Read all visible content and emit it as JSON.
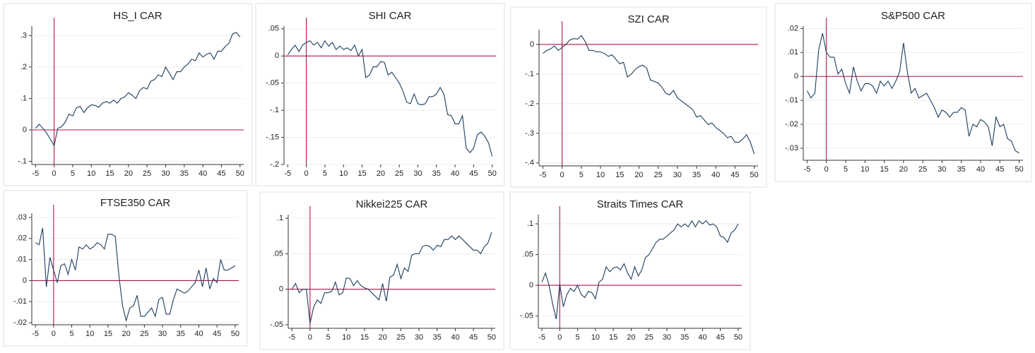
{
  "chart_data": [
    {
      "type": "line",
      "title": "HS_I CAR",
      "color": "#1c3d5e",
      "ref_color": "#b3164b",
      "vline": 0,
      "hline": 0,
      "grid": true,
      "x": [
        -5,
        -4,
        -3,
        -2,
        -1,
        0,
        1,
        2,
        3,
        4,
        5,
        6,
        7,
        8,
        9,
        10,
        11,
        12,
        13,
        14,
        15,
        16,
        17,
        18,
        19,
        20,
        21,
        22,
        23,
        24,
        25,
        26,
        27,
        28,
        29,
        30,
        31,
        32,
        33,
        34,
        35,
        36,
        37,
        38,
        39,
        40,
        41,
        42,
        43,
        44,
        45,
        46,
        47,
        48,
        49,
        50
      ],
      "values": [
        0.005,
        0.018,
        0.005,
        -0.01,
        -0.03,
        -0.05,
        0.005,
        0.01,
        0.025,
        0.05,
        0.045,
        0.07,
        0.075,
        0.055,
        0.07,
        0.08,
        0.078,
        0.072,
        0.085,
        0.09,
        0.085,
        0.095,
        0.085,
        0.1,
        0.105,
        0.118,
        0.11,
        0.1,
        0.125,
        0.135,
        0.13,
        0.155,
        0.16,
        0.175,
        0.17,
        0.2,
        0.18,
        0.16,
        0.185,
        0.185,
        0.2,
        0.21,
        0.225,
        0.22,
        0.245,
        0.232,
        0.24,
        0.245,
        0.225,
        0.25,
        0.25,
        0.265,
        0.275,
        0.305,
        0.31,
        0.295
      ],
      "xlim": [
        -6,
        51
      ],
      "ylim": [
        -0.11,
        0.33
      ],
      "xticks": [
        -5,
        0,
        5,
        10,
        15,
        20,
        25,
        30,
        35,
        40,
        45,
        50
      ],
      "yticks": [
        {
          "value": -0.1,
          "label": "-.1"
        },
        0,
        {
          "value": 0.1,
          "label": ".1"
        },
        {
          "value": 0.2,
          "label": ".2"
        },
        {
          "value": 0.3,
          "label": ".3"
        }
      ]
    },
    {
      "type": "line",
      "title": "SHI CAR",
      "color": "#1c3d5e",
      "ref_color": "#b3164b",
      "vline": 0,
      "hline": 0,
      "grid": true,
      "x": [
        -5,
        -4,
        -3,
        -2,
        -1,
        0,
        1,
        2,
        3,
        4,
        5,
        6,
        7,
        8,
        9,
        10,
        11,
        12,
        13,
        14,
        15,
        16,
        17,
        18,
        19,
        20,
        21,
        22,
        23,
        24,
        25,
        26,
        27,
        28,
        29,
        30,
        31,
        32,
        33,
        34,
        35,
        36,
        37,
        38,
        39,
        40,
        41,
        42,
        43,
        44,
        45,
        46,
        47,
        48,
        49,
        50
      ],
      "values": [
        0.002,
        0.012,
        0.02,
        0.008,
        0.02,
        0.025,
        0.028,
        0.02,
        0.025,
        0.015,
        0.028,
        0.018,
        0.025,
        0.012,
        0.018,
        0.012,
        0.015,
        0.01,
        0.02,
        0.0,
        0.012,
        -0.04,
        -0.035,
        -0.02,
        -0.02,
        -0.01,
        -0.012,
        -0.035,
        -0.03,
        -0.04,
        -0.05,
        -0.065,
        -0.085,
        -0.088,
        -0.07,
        -0.088,
        -0.09,
        -0.088,
        -0.075,
        -0.075,
        -0.07,
        -0.058,
        -0.07,
        -0.108,
        -0.11,
        -0.125,
        -0.125,
        -0.11,
        -0.17,
        -0.178,
        -0.17,
        -0.145,
        -0.14,
        -0.148,
        -0.16,
        -0.185
      ],
      "xlim": [
        -6,
        51
      ],
      "ylim": [
        -0.2,
        0.055
      ],
      "xticks": [
        -5,
        0,
        5,
        10,
        15,
        20,
        25,
        30,
        35,
        40,
        45,
        50
      ],
      "yticks": [
        {
          "value": -0.2,
          "label": "-.2"
        },
        {
          "value": -0.15,
          "label": "-.15"
        },
        {
          "value": -0.1,
          "label": "-.1"
        },
        {
          "value": -0.05,
          "label": "-.05"
        },
        0,
        {
          "value": 0.05,
          "label": ".05"
        }
      ]
    },
    {
      "type": "line",
      "title": "SZI CAR",
      "color": "#1c3d5e",
      "ref_color": "#b3164b",
      "vline": 0,
      "hline": 0,
      "grid": true,
      "x": [
        -5,
        -4,
        -3,
        -2,
        -1,
        0,
        1,
        2,
        3,
        4,
        5,
        6,
        7,
        8,
        9,
        10,
        11,
        12,
        13,
        14,
        15,
        16,
        17,
        18,
        19,
        20,
        21,
        22,
        23,
        24,
        25,
        26,
        27,
        28,
        29,
        30,
        31,
        32,
        33,
        34,
        35,
        36,
        37,
        38,
        39,
        40,
        41,
        42,
        43,
        44,
        45,
        46,
        47,
        48,
        49,
        50
      ],
      "values": [
        -0.03,
        -0.02,
        -0.015,
        -0.005,
        -0.02,
        -0.01,
        0.0,
        0.015,
        0.02,
        0.018,
        0.03,
        0.01,
        -0.02,
        -0.02,
        -0.025,
        -0.025,
        -0.03,
        -0.04,
        -0.035,
        -0.05,
        -0.065,
        -0.06,
        -0.11,
        -0.1,
        -0.085,
        -0.075,
        -0.07,
        -0.08,
        -0.12,
        -0.125,
        -0.13,
        -0.145,
        -0.165,
        -0.17,
        -0.155,
        -0.18,
        -0.19,
        -0.2,
        -0.21,
        -0.22,
        -0.245,
        -0.24,
        -0.255,
        -0.27,
        -0.265,
        -0.28,
        -0.29,
        -0.3,
        -0.315,
        -0.31,
        -0.33,
        -0.33,
        -0.32,
        -0.305,
        -0.33,
        -0.37
      ],
      "xlim": [
        -6,
        51
      ],
      "ylim": [
        -0.41,
        0.05
      ],
      "xticks": [
        -5,
        0,
        5,
        10,
        15,
        20,
        25,
        30,
        35,
        40,
        45,
        50
      ],
      "yticks": [
        {
          "value": -0.4,
          "label": "-.4"
        },
        {
          "value": -0.3,
          "label": "-.3"
        },
        {
          "value": -0.2,
          "label": "-.2"
        },
        {
          "value": -0.1,
          "label": "-.1"
        },
        0
      ]
    },
    {
      "type": "line",
      "title": "S&P500 CAR",
      "color": "#1c3d5e",
      "ref_color": "#b3164b",
      "vline": 0,
      "hline": 0,
      "grid": true,
      "x": [
        -5,
        -4,
        -3,
        -2,
        -1,
        0,
        1,
        2,
        3,
        4,
        5,
        6,
        7,
        8,
        9,
        10,
        11,
        12,
        13,
        14,
        15,
        16,
        17,
        18,
        19,
        20,
        21,
        22,
        23,
        24,
        25,
        26,
        27,
        28,
        29,
        30,
        31,
        32,
        33,
        34,
        35,
        36,
        37,
        38,
        39,
        40,
        41,
        42,
        43,
        44,
        45,
        46,
        47,
        48,
        49,
        50
      ],
      "values": [
        -0.006,
        -0.009,
        -0.007,
        0.011,
        0.018,
        0.01,
        0.008,
        0.008,
        0.001,
        0.003,
        -0.003,
        -0.007,
        0.004,
        -0.002,
        -0.006,
        -0.003,
        -0.003,
        -0.004,
        -0.007,
        -0.002,
        -0.004,
        -0.002,
        -0.005,
        -0.002,
        0.002,
        0.014,
        0.002,
        -0.007,
        -0.005,
        -0.009,
        -0.008,
        -0.007,
        -0.01,
        -0.013,
        -0.017,
        -0.014,
        -0.015,
        -0.017,
        -0.015,
        -0.015,
        -0.013,
        -0.014,
        -0.025,
        -0.02,
        -0.021,
        -0.018,
        -0.019,
        -0.021,
        -0.029,
        -0.017,
        -0.021,
        -0.02,
        -0.026,
        -0.027,
        -0.031,
        -0.032
      ],
      "xlim": [
        -6,
        51
      ],
      "ylim": [
        -0.035,
        0.021
      ],
      "xticks": [
        -5,
        0,
        5,
        10,
        15,
        20,
        25,
        30,
        35,
        40,
        45,
        50
      ],
      "yticks": [
        {
          "value": -0.03,
          "label": "-.03"
        },
        {
          "value": -0.02,
          "label": "-.02"
        },
        {
          "value": -0.01,
          "label": "-.01"
        },
        0,
        {
          "value": 0.01,
          "label": ".01"
        },
        {
          "value": 0.02,
          "label": ".02"
        }
      ]
    },
    {
      "type": "line",
      "title": "FTSE350 CAR",
      "color": "#1c3d5e",
      "ref_color": "#b3164b",
      "vline": 0,
      "hline": 0,
      "grid": true,
      "x": [
        -5,
        -4,
        -3,
        -2,
        -1,
        0,
        1,
        2,
        3,
        4,
        5,
        6,
        7,
        8,
        9,
        10,
        11,
        12,
        13,
        14,
        15,
        16,
        17,
        18,
        19,
        20,
        21,
        22,
        23,
        24,
        25,
        26,
        27,
        28,
        29,
        30,
        31,
        32,
        33,
        34,
        35,
        36,
        37,
        38,
        39,
        40,
        41,
        42,
        43,
        44,
        45,
        46,
        47,
        48,
        49,
        50
      ],
      "values": [
        0.018,
        0.017,
        0.025,
        -0.003,
        0.011,
        0.005,
        -0.001,
        0.007,
        0.008,
        0.003,
        0.01,
        0.005,
        0.016,
        0.015,
        0.017,
        0.015,
        0.016,
        0.018,
        0.017,
        0.015,
        0.022,
        0.022,
        0.021,
        0.002,
        -0.012,
        -0.019,
        -0.013,
        -0.012,
        -0.007,
        -0.017,
        -0.017,
        -0.015,
        -0.013,
        -0.017,
        -0.009,
        -0.008,
        -0.016,
        -0.016,
        -0.009,
        -0.004,
        -0.005,
        -0.006,
        -0.005,
        -0.003,
        -0.001,
        0.005,
        -0.003,
        0.006,
        -0.004,
        0.001,
        -0.001,
        0.01,
        0.005,
        0.005,
        0.006,
        0.007
      ],
      "xlim": [
        -6,
        51
      ],
      "ylim": [
        -0.021,
        0.032
      ],
      "xticks": [
        -5,
        0,
        5,
        10,
        15,
        20,
        25,
        30,
        35,
        40,
        45,
        50
      ],
      "yticks": [
        {
          "value": -0.02,
          "label": "-.02"
        },
        {
          "value": -0.01,
          "label": "-.01"
        },
        0,
        {
          "value": 0.01,
          "label": ".01"
        },
        {
          "value": 0.02,
          "label": ".02"
        },
        {
          "value": 0.03,
          "label": ".03"
        }
      ]
    },
    {
      "type": "line",
      "title": "Nikkei225 CAR",
      "color": "#1c3d5e",
      "ref_color": "#b3164b",
      "vline": 0,
      "hline": 0,
      "grid": true,
      "x": [
        -5,
        -4,
        -3,
        -2,
        -1,
        0,
        1,
        2,
        3,
        4,
        5,
        6,
        7,
        8,
        9,
        10,
        11,
        12,
        13,
        14,
        15,
        16,
        17,
        18,
        19,
        20,
        21,
        22,
        23,
        24,
        25,
        26,
        27,
        28,
        29,
        30,
        31,
        32,
        33,
        34,
        35,
        36,
        37,
        38,
        39,
        40,
        41,
        42,
        43,
        44,
        45,
        46,
        47,
        48,
        49,
        50
      ],
      "values": [
        0.0,
        0.008,
        -0.005,
        0.0,
        0.0,
        -0.048,
        -0.025,
        -0.015,
        -0.02,
        -0.005,
        -0.005,
        -0.003,
        0.01,
        -0.008,
        -0.005,
        0.016,
        0.015,
        0.005,
        0.012,
        0.005,
        0.002,
        0.0,
        -0.005,
        -0.01,
        -0.015,
        0.008,
        -0.017,
        0.017,
        0.02,
        0.035,
        0.015,
        0.03,
        0.025,
        0.048,
        0.05,
        0.05,
        0.06,
        0.062,
        0.06,
        0.055,
        0.062,
        0.06,
        0.07,
        0.07,
        0.075,
        0.07,
        0.075,
        0.07,
        0.065,
        0.06,
        0.055,
        0.055,
        0.05,
        0.06,
        0.065,
        0.08
      ],
      "xlim": [
        -6,
        51
      ],
      "ylim": [
        -0.055,
        0.105
      ],
      "xticks": [
        -5,
        0,
        5,
        10,
        15,
        20,
        25,
        30,
        35,
        40,
        45,
        50
      ],
      "yticks": [
        {
          "value": -0.05,
          "label": "-.05"
        },
        0,
        {
          "value": 0.05,
          "label": ".05"
        },
        {
          "value": 0.1,
          "label": ".1"
        }
      ]
    },
    {
      "type": "line",
      "title": "Straits Times CAR",
      "color": "#1c3d5e",
      "ref_color": "#b3164b",
      "vline": 0,
      "hline": 0,
      "grid": true,
      "x": [
        -5,
        -4,
        -3,
        -2,
        -1,
        0,
        1,
        2,
        3,
        4,
        5,
        6,
        7,
        8,
        9,
        10,
        11,
        12,
        13,
        14,
        15,
        16,
        17,
        18,
        19,
        20,
        21,
        22,
        23,
        24,
        25,
        26,
        27,
        28,
        29,
        30,
        31,
        32,
        33,
        34,
        35,
        36,
        37,
        38,
        39,
        40,
        41,
        42,
        43,
        44,
        45,
        46,
        47,
        48,
        49,
        50
      ],
      "values": [
        0.005,
        0.02,
        0.0,
        -0.03,
        -0.055,
        0.002,
        -0.035,
        -0.015,
        -0.005,
        -0.01,
        0.0,
        -0.015,
        -0.02,
        -0.01,
        -0.012,
        -0.022,
        0.005,
        0.01,
        0.03,
        0.022,
        0.028,
        0.03,
        0.025,
        0.035,
        0.02,
        0.01,
        0.03,
        0.015,
        0.025,
        0.045,
        0.05,
        0.06,
        0.07,
        0.075,
        0.075,
        0.08,
        0.085,
        0.09,
        0.1,
        0.095,
        0.1,
        0.095,
        0.105,
        0.095,
        0.105,
        0.1,
        0.105,
        0.098,
        0.1,
        0.095,
        0.08,
        0.078,
        0.07,
        0.085,
        0.09,
        0.1
      ],
      "xlim": [
        -6,
        51
      ],
      "ylim": [
        -0.07,
        0.115
      ],
      "xticks": [
        -5,
        0,
        5,
        10,
        15,
        20,
        25,
        30,
        35,
        40,
        45,
        50
      ],
      "yticks": [
        {
          "value": -0.05,
          "label": "-.05"
        },
        0,
        {
          "value": 0.05,
          "label": ".05"
        },
        {
          "value": 0.1,
          "label": ".1"
        }
      ]
    }
  ]
}
